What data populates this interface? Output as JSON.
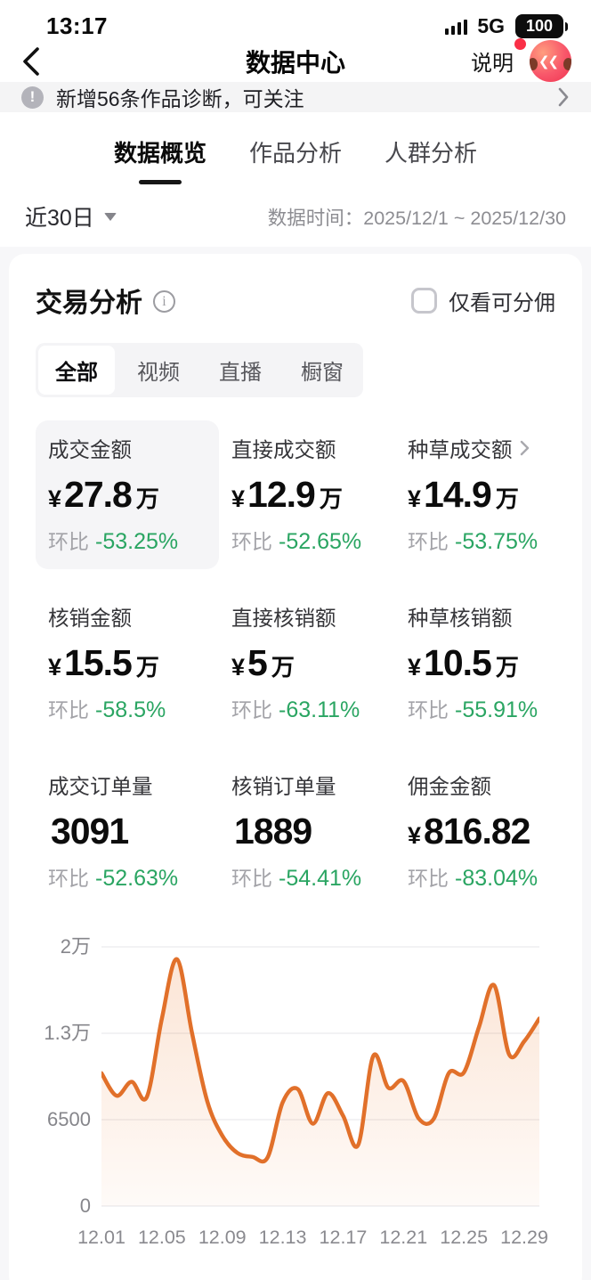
{
  "status_bar": {
    "time": "13:17",
    "network": "5G",
    "battery": "100"
  },
  "header": {
    "title": "数据中心",
    "help_label": "说明"
  },
  "notice": {
    "text": "新增56条作品诊断，可关注"
  },
  "tabs": [
    {
      "label": "数据概览",
      "active": true
    },
    {
      "label": "作品分析",
      "active": false
    },
    {
      "label": "人群分析",
      "active": false
    }
  ],
  "filter": {
    "range_label": "近30日",
    "date_prefix": "数据时间：",
    "date_value": "2025/12/1 ~ 2025/12/30"
  },
  "panel": {
    "title": "交易分析",
    "checkbox_label": "仅看可分佣",
    "compare_label": "环比",
    "segments": [
      {
        "label": "全部",
        "active": true
      },
      {
        "label": "视频",
        "active": false
      },
      {
        "label": "直播",
        "active": false
      },
      {
        "label": "橱窗",
        "active": false
      }
    ],
    "metrics": [
      {
        "label": "成交金额",
        "prefix": "¥",
        "value": "27.8",
        "suffix": "万",
        "compare": "-53.25%"
      },
      {
        "label": "直接成交额",
        "prefix": "¥",
        "value": "12.9",
        "suffix": "万",
        "compare": "-52.65%"
      },
      {
        "label": "种草成交额",
        "prefix": "¥",
        "value": "14.9",
        "suffix": "万",
        "compare": "-53.75%"
      },
      {
        "label": "核销金额",
        "prefix": "¥",
        "value": "15.5",
        "suffix": "万",
        "compare": "-58.5%"
      },
      {
        "label": "直接核销额",
        "prefix": "¥",
        "value": "5",
        "suffix": "万",
        "compare": "-63.11%"
      },
      {
        "label": "种草核销额",
        "prefix": "¥",
        "value": "10.5",
        "suffix": "万",
        "compare": "-55.91%"
      },
      {
        "label": "成交订单量",
        "value": "3091",
        "compare": "-52.63%"
      },
      {
        "label": "核销订单量",
        "value": "1889",
        "compare": "-54.41%"
      },
      {
        "label": "佣金金额",
        "prefix": "¥",
        "value": "816.82",
        "compare": "-83.04%"
      }
    ]
  },
  "chart_data": {
    "type": "area",
    "title": "",
    "x": [
      "12.01",
      "12.02",
      "12.03",
      "12.04",
      "12.05",
      "12.06",
      "12.07",
      "12.08",
      "12.09",
      "12.10",
      "12.11",
      "12.12",
      "12.13",
      "12.14",
      "12.15",
      "12.16",
      "12.17",
      "12.18",
      "12.19",
      "12.20",
      "12.21",
      "12.22",
      "12.23",
      "12.24",
      "12.25",
      "12.26",
      "12.27",
      "12.28",
      "12.29",
      "12.30"
    ],
    "values": [
      10000,
      8300,
      9350,
      8200,
      14200,
      19000,
      13000,
      7900,
      5300,
      4000,
      3700,
      3650,
      7800,
      8800,
      6200,
      8500,
      6800,
      4600,
      11300,
      8900,
      9400,
      6600,
      6550,
      10000,
      10050,
      13500,
      16900,
      11400,
      12400,
      14200
    ],
    "ylim": [
      0,
      20000
    ],
    "ytick_labels": [
      "0",
      "6500",
      "1.3万",
      "2万"
    ],
    "ytick_values": [
      0,
      6500,
      13000,
      20000
    ],
    "xtick_labels": [
      "12.01",
      "12.05",
      "12.09",
      "12.13",
      "12.17",
      "12.21",
      "12.25",
      "12.29"
    ],
    "xtick_indices": [
      0,
      4,
      8,
      12,
      16,
      20,
      24,
      28
    ],
    "grid": true,
    "legend": "none",
    "line_color": "#e1702a",
    "fill_color": "#ec7d31",
    "grid_color": "#ededf0"
  },
  "colors": {
    "accent_green": "#2aa562",
    "accent_orange": "#e1702a",
    "badge_red": "#fa2f47"
  }
}
